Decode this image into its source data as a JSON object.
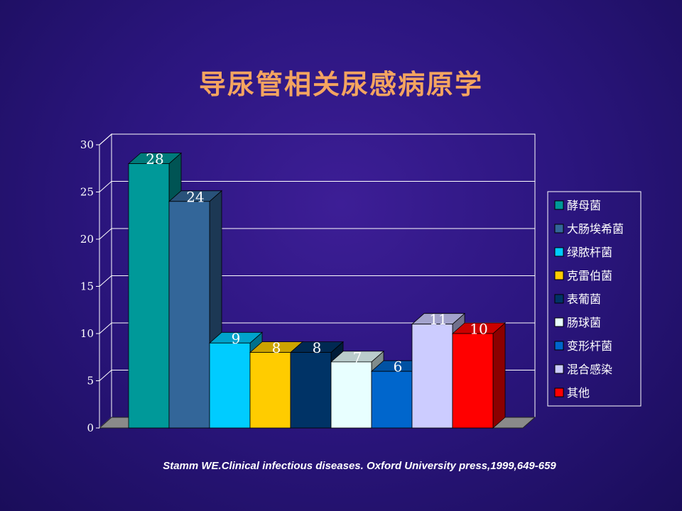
{
  "slide": {
    "title": "导尿管相关尿感病原学",
    "citation": "Stamm WE.Clinical infectious diseases. Oxford University press,1999,649-659"
  },
  "chart_data": {
    "type": "bar",
    "categories": [
      "酵母菌",
      "大肠埃希菌",
      "绿脓杆菌",
      "克雷伯菌",
      "表葡菌",
      "肠球菌",
      "变形杆菌",
      "混合感染",
      "其他"
    ],
    "values": [
      28,
      24,
      9,
      8,
      8,
      7,
      6,
      11,
      10
    ],
    "data_labels": [
      "28",
      "24",
      "9",
      "8",
      "8",
      "7",
      "6",
      "11",
      "10"
    ],
    "colors": [
      "#009999",
      "#336699",
      "#00ccff",
      "#ffcc00",
      "#003366",
      "#e8ffff",
      "#0066cc",
      "#ccccff",
      "#ff0000"
    ],
    "ylim": [
      0,
      30
    ],
    "yticks": [
      "0",
      "5",
      "10",
      "15",
      "20",
      "25",
      "30"
    ],
    "title": "",
    "xlabel": "",
    "ylabel": "",
    "legend": "right",
    "grid": true,
    "style": "3d-bar"
  }
}
